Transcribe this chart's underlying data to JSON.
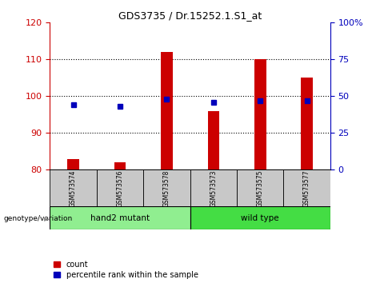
{
  "title": "GDS3735 / Dr.15252.1.S1_at",
  "samples": [
    "GSM573574",
    "GSM573576",
    "GSM573578",
    "GSM573573",
    "GSM573575",
    "GSM573577"
  ],
  "count_values": [
    83,
    82,
    112,
    96,
    110,
    105
  ],
  "percentile_values": [
    44,
    43,
    48,
    46,
    47,
    47
  ],
  "bar_bottom": 80,
  "ylim_left": [
    80,
    120
  ],
  "ylim_right": [
    0,
    100
  ],
  "yticks_left": [
    80,
    90,
    100,
    110,
    120
  ],
  "yticks_right": [
    0,
    25,
    50,
    75,
    100
  ],
  "ytick_labels_right": [
    "0",
    "25",
    "50",
    "75",
    "100%"
  ],
  "bar_color": "#CC0000",
  "dot_color": "#0000BB",
  "left_tick_color": "#CC0000",
  "right_tick_color": "#0000BB",
  "bar_width": 0.25,
  "dot_size": 4,
  "legend_count_label": "count",
  "legend_pct_label": "percentile rank within the sample",
  "genotype_label": "genotype/variation",
  "group_defs": [
    {
      "start": 0,
      "end": 2,
      "label": "hand2 mutant",
      "color": "#90EE90"
    },
    {
      "start": 3,
      "end": 5,
      "label": "wild type",
      "color": "#44DD44"
    }
  ],
  "hgrid_values": [
    90,
    100,
    110
  ]
}
